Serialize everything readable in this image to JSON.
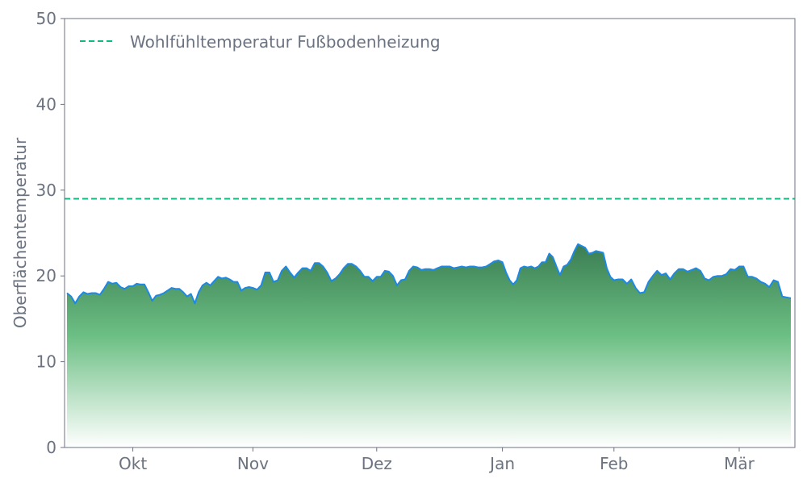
{
  "chart_data": {
    "type": "area",
    "title": "",
    "xlabel": "",
    "ylabel": "Oberflächentemperatur",
    "ylim": [
      0,
      50
    ],
    "yticks": [
      "0",
      "10",
      "20",
      "30",
      "40",
      "50"
    ],
    "xticks": [
      {
        "label": "Okt",
        "date": "10-01"
      },
      {
        "label": "Nov",
        "date": "11-01"
      },
      {
        "label": "Dez",
        "date": "12-01"
      },
      {
        "label": "Jan",
        "date": "01-01"
      },
      {
        "label": "Feb",
        "date": "02-01"
      },
      {
        "label": "Mär",
        "date": "03-01"
      }
    ],
    "grid": false,
    "legend_position": "top-left",
    "reference_line": {
      "name": "Wohlfühltemperatur Fußbodenheizung",
      "value": 29,
      "color": "#10b981",
      "style": "dashed"
    },
    "series": [
      {
        "line_color": "#1e88e5",
        "fill_top_color": "#3a7d52",
        "fill_bottom_color": "#ffffff",
        "x": [
          "09-15",
          "09-16",
          "09-17",
          "09-18",
          "09-19",
          "09-20",
          "09-21",
          "09-22",
          "09-23",
          "09-24",
          "09-25",
          "09-26",
          "09-27",
          "09-28",
          "09-29",
          "09-30",
          "10-01",
          "10-02",
          "10-03",
          "10-04",
          "10-05",
          "10-06",
          "10-07",
          "10-08",
          "10-09",
          "10-10",
          "10-11",
          "10-12",
          "10-13",
          "10-14",
          "10-15",
          "10-16",
          "10-17",
          "10-18",
          "10-19",
          "10-20",
          "10-21",
          "10-22",
          "10-23",
          "10-24",
          "10-25",
          "10-26",
          "10-27",
          "10-28",
          "10-29",
          "10-30",
          "10-31",
          "11-01",
          "11-02",
          "11-03",
          "11-04",
          "11-05",
          "11-06",
          "11-07",
          "11-08",
          "11-09",
          "11-10",
          "11-11",
          "11-12",
          "11-13",
          "11-14",
          "11-15",
          "11-16",
          "11-17",
          "11-18",
          "11-19",
          "11-20",
          "11-21",
          "11-22",
          "11-23",
          "11-24",
          "11-25",
          "11-26",
          "11-27",
          "11-28",
          "11-29",
          "11-30",
          "12-01",
          "12-02",
          "12-03",
          "12-04",
          "12-05",
          "12-06",
          "12-07",
          "12-08",
          "12-09",
          "12-10",
          "12-11",
          "12-12",
          "12-13",
          "12-14",
          "12-15",
          "12-16",
          "12-17",
          "12-18",
          "12-19",
          "12-20",
          "12-21",
          "12-22",
          "12-23",
          "12-24",
          "12-25",
          "12-26",
          "12-27",
          "12-28",
          "12-29",
          "12-30",
          "12-31",
          "01-01",
          "01-02",
          "01-03",
          "01-04",
          "01-05",
          "01-06",
          "01-07",
          "01-08",
          "01-09",
          "01-10",
          "01-11",
          "01-12",
          "01-13",
          "01-14",
          "01-15",
          "01-16",
          "01-17",
          "01-18",
          "01-19",
          "01-20",
          "01-21",
          "01-22",
          "01-23",
          "01-24",
          "01-25",
          "01-26",
          "01-27",
          "01-28",
          "01-29",
          "01-30",
          "01-31",
          "02-01",
          "02-02",
          "02-03",
          "02-04",
          "02-05",
          "02-06",
          "02-07",
          "02-08",
          "02-09",
          "02-10",
          "02-11",
          "02-12",
          "02-13",
          "02-14",
          "02-15",
          "02-16",
          "02-17",
          "02-18",
          "02-19",
          "02-20",
          "02-21",
          "02-22",
          "02-23",
          "02-24",
          "02-25",
          "02-26",
          "02-27",
          "02-28",
          "02-29",
          "03-01",
          "03-02",
          "03-03",
          "03-04",
          "03-05",
          "03-06",
          "03-07",
          "03-08",
          "03-09",
          "03-10",
          "03-11",
          "03-12",
          "03-13"
        ],
        "y": [
          18.0,
          17.6,
          16.8,
          17.6,
          18.1,
          17.9,
          18.0,
          18.0,
          17.8,
          18.5,
          19.3,
          19.1,
          19.2,
          18.7,
          18.5,
          18.8,
          18.8,
          19.1,
          19.0,
          19.0,
          18.1,
          17.1,
          17.7,
          17.8,
          18.0,
          18.3,
          18.6,
          18.5,
          18.5,
          18.1,
          17.6,
          17.9,
          16.8,
          18.1,
          18.9,
          19.2,
          18.9,
          19.4,
          19.9,
          19.7,
          19.8,
          19.6,
          19.3,
          19.3,
          18.3,
          18.6,
          18.7,
          18.6,
          18.4,
          18.9,
          20.4,
          20.4,
          19.3,
          19.5,
          20.6,
          21.1,
          20.4,
          19.8,
          20.4,
          20.9,
          20.9,
          20.6,
          21.5,
          21.5,
          21.1,
          20.4,
          19.4,
          19.7,
          20.2,
          20.9,
          21.4,
          21.4,
          21.1,
          20.6,
          19.9,
          19.9,
          19.4,
          19.9,
          19.9,
          20.6,
          20.5,
          20.0,
          18.9,
          19.5,
          19.6,
          20.6,
          21.1,
          21.0,
          20.7,
          20.8,
          20.8,
          20.7,
          20.9,
          21.1,
          21.1,
          21.1,
          20.9,
          21.0,
          21.1,
          21.0,
          21.1,
          21.1,
          21.0,
          21.0,
          21.1,
          21.4,
          21.7,
          21.8,
          21.6,
          20.4,
          19.5,
          19.0,
          19.5,
          20.9,
          21.1,
          21.0,
          21.1,
          20.9,
          21.1,
          21.6,
          21.6,
          22.6,
          22.2,
          21.1,
          20.1,
          21.1,
          21.3,
          21.9,
          22.9,
          23.7,
          23.5,
          23.3,
          22.6,
          22.7,
          22.9,
          22.8,
          22.7,
          20.9,
          19.9,
          19.5,
          19.6,
          19.6,
          19.1,
          19.6,
          18.6,
          18.0,
          18.1,
          19.3,
          20.0,
          20.6,
          20.1,
          20.3,
          19.6,
          20.3,
          20.8,
          20.8,
          20.5,
          20.7,
          20.9,
          20.6,
          19.7,
          19.5,
          19.9,
          20.0,
          20.0,
          20.2,
          20.8,
          20.7,
          21.1,
          21.1,
          19.9,
          19.9,
          19.7,
          19.3,
          19.1,
          18.7,
          19.5,
          19.3,
          17.6,
          17.5,
          17.4
        ]
      }
    ]
  }
}
